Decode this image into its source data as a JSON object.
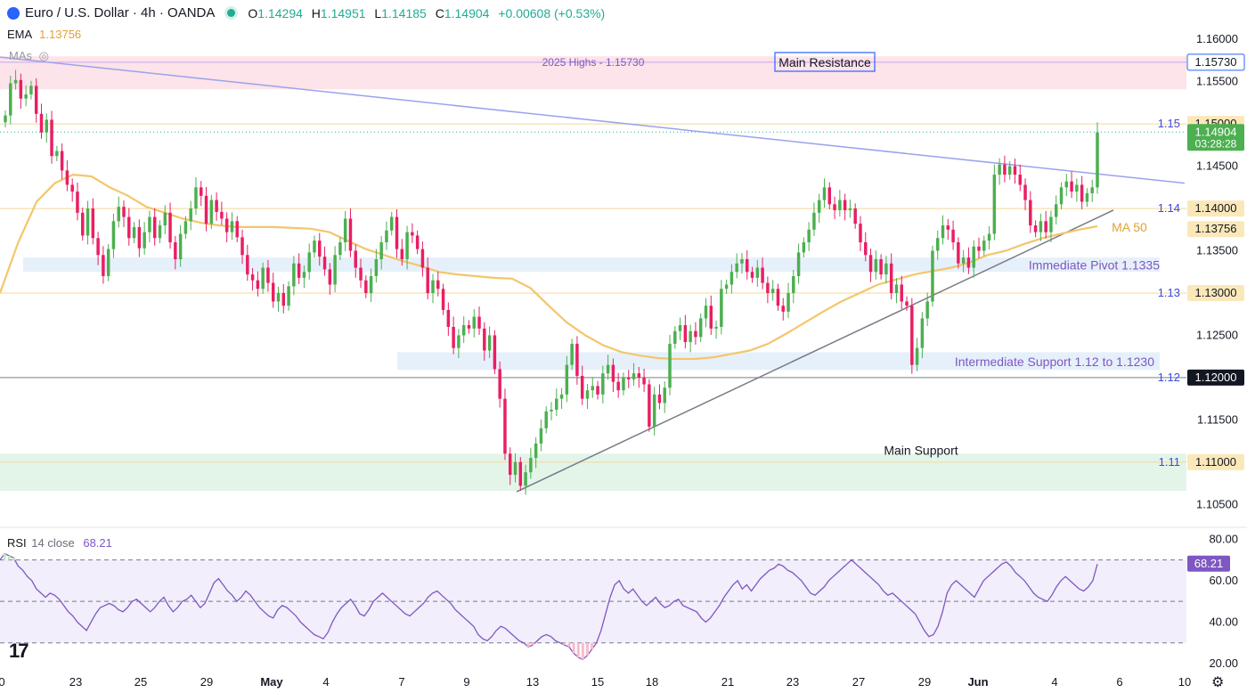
{
  "header": {
    "symbol": "Euro / U.S. Dollar · 4h · OANDA",
    "open_key": "O",
    "open": "1.14294",
    "high_key": "H",
    "high": "1.14951",
    "low_key": "L",
    "low": "1.14185",
    "close_key": "C",
    "close": "1.14904",
    "change": "+0.00608 (+0.53%)"
  },
  "ema_indicator": {
    "label": "EMA",
    "value": "1.13756"
  },
  "mas_label": "MAs",
  "rsi_indicator": {
    "label": "RSI",
    "params": "14 close",
    "value": "68.21"
  },
  "colors": {
    "up": "#4caf50",
    "down": "#e91e63",
    "ema": "#f3c66b",
    "trend_upper": "#9aa3ec",
    "trend_lower": "#787b86",
    "resistance_zone": "#fde3ea",
    "support_zone": "#e3f5e9",
    "pivot_zone": "#e6f0fa",
    "rsi": "#7e57c2",
    "accent": "#4caf50"
  },
  "chart_data": [
    {
      "type": "candlestick",
      "title": "Euro / U.S. Dollar · 4h · OANDA",
      "ylim": [
        1.1025,
        1.1615
      ],
      "y_ticks": [
        "1.16000",
        "1.15500",
        "1.15000",
        "1.14500",
        "1.14000",
        "1.13500",
        "1.13000",
        "1.12500",
        "1.12000",
        "1.11500",
        "1.11000",
        "1.10500"
      ],
      "x_ticks": [
        "0",
        "23",
        "25",
        "29",
        "May",
        "4",
        "7",
        "9",
        "13",
        "15",
        "18",
        "21",
        "23",
        "27",
        "29",
        "Jun",
        "4",
        "6",
        "10"
      ],
      "price_labels": [
        {
          "text": "1.15730",
          "style": "outline"
        },
        {
          "text": "1.15000",
          "style": "yellow"
        },
        {
          "text": "1.14904",
          "sub": "03:28:28",
          "style": "green"
        },
        {
          "text": "1.14000",
          "style": "yellow"
        },
        {
          "text": "1.13756",
          "style": "yellow"
        },
        {
          "text": "1.13000",
          "style": "yellow"
        },
        {
          "text": "1.12000",
          "style": "dark"
        },
        {
          "text": "1.11000",
          "style": "yellow"
        }
      ],
      "level_tags": [
        {
          "text": "1.15",
          "price": 1.15
        },
        {
          "text": "1.14",
          "price": 1.14
        },
        {
          "text": "1.13",
          "price": 1.13
        },
        {
          "text": "1.12",
          "price": 1.12
        },
        {
          "text": "1.11",
          "price": 1.11
        }
      ],
      "annotations": {
        "highs": "2025 Highs - 1.15730",
        "main_resistance": "Main Resistance",
        "ma50": "MA 50",
        "pivot": "Immediate Pivot 1.1335",
        "intermediate_support": "Intermediate Support 1.12 to 1.1230",
        "main_support": "Main Support"
      },
      "zones": [
        {
          "name": "Main Resistance",
          "from": 1.1541,
          "to": 1.158
        },
        {
          "name": "Immediate Pivot",
          "from": 1.1325,
          "to": 1.1342
        },
        {
          "name": "Intermediate Support",
          "from": 1.1209,
          "to": 1.123
        },
        {
          "name": "Main Support",
          "from": 1.1066,
          "to": 1.111
        }
      ],
      "closes": [
        1.151,
        1.1548,
        1.1552,
        1.153,
        1.1535,
        1.1545,
        1.1512,
        1.149,
        1.1505,
        1.1462,
        1.1468,
        1.1445,
        1.1428,
        1.142,
        1.1395,
        1.1368,
        1.14,
        1.1365,
        1.1345,
        1.132,
        1.1352,
        1.1385,
        1.1402,
        1.139,
        1.1365,
        1.1378,
        1.1353,
        1.1372,
        1.139,
        1.1365,
        1.138,
        1.1395,
        1.136,
        1.134,
        1.137,
        1.1385,
        1.14,
        1.1425,
        1.1415,
        1.1382,
        1.141,
        1.1396,
        1.1388,
        1.1372,
        1.1385,
        1.1366,
        1.1345,
        1.1322,
        1.1315,
        1.1305,
        1.133,
        1.1312,
        1.129,
        1.13,
        1.1285,
        1.1308,
        1.1335,
        1.1318,
        1.1325,
        1.1348,
        1.1362,
        1.1343,
        1.1328,
        1.131,
        1.1345,
        1.136,
        1.1388,
        1.135,
        1.133,
        1.1315,
        1.13,
        1.132,
        1.134,
        1.136,
        1.1374,
        1.139,
        1.1352,
        1.134,
        1.1372,
        1.1368,
        1.1352,
        1.133,
        1.13,
        1.1315,
        1.1305,
        1.128,
        1.126,
        1.1235,
        1.125,
        1.1262,
        1.1258,
        1.1272,
        1.1258,
        1.1232,
        1.125,
        1.121,
        1.1175,
        1.111,
        1.1085,
        1.11,
        1.1072,
        1.1088,
        1.1105,
        1.1122,
        1.114,
        1.116,
        1.1162,
        1.1175,
        1.118,
        1.1215,
        1.124,
        1.1202,
        1.1175,
        1.1185,
        1.119,
        1.118,
        1.1205,
        1.1215,
        1.1195,
        1.1185,
        1.12,
        1.1198,
        1.1205,
        1.12,
        1.1192,
        1.1142,
        1.118,
        1.117,
        1.1188,
        1.124,
        1.1255,
        1.1262,
        1.1242,
        1.1255,
        1.1248,
        1.127,
        1.1285,
        1.1258,
        1.126,
        1.1305,
        1.131,
        1.1325,
        1.1335,
        1.134,
        1.1325,
        1.1318,
        1.133,
        1.1312,
        1.13,
        1.1305,
        1.1285,
        1.1278,
        1.13,
        1.132,
        1.1348,
        1.136,
        1.1375,
        1.1395,
        1.141,
        1.1425,
        1.1405,
        1.1398,
        1.141,
        1.1398,
        1.14,
        1.1382,
        1.136,
        1.1345,
        1.1325,
        1.134,
        1.1322,
        1.1335,
        1.13,
        1.131,
        1.129,
        1.1285,
        1.1215,
        1.1235,
        1.127,
        1.129,
        1.135,
        1.1365,
        1.138,
        1.1375,
        1.136,
        1.1335,
        1.1342,
        1.133,
        1.1355,
        1.135,
        1.1362,
        1.137,
        1.144,
        1.1452,
        1.144,
        1.145,
        1.144,
        1.1428,
        1.141,
        1.138,
        1.1372,
        1.1385,
        1.1372,
        1.139,
        1.1405,
        1.1425,
        1.1432,
        1.142,
        1.1428,
        1.1408,
        1.1418,
        1.1425,
        1.149
      ],
      "ema50": [
        1.13,
        1.136,
        1.1408,
        1.143,
        1.144,
        1.1438,
        1.1425,
        1.1415,
        1.1402,
        1.1395,
        1.1388,
        1.1383,
        1.138,
        1.1378,
        1.1378,
        1.1378,
        1.1377,
        1.1376,
        1.1372,
        1.1362,
        1.1352,
        1.1345,
        1.1338,
        1.1332,
        1.1325,
        1.1322,
        1.132,
        1.1318,
        1.1317,
        1.1306,
        1.1285,
        1.1265,
        1.125,
        1.1238,
        1.123,
        1.1226,
        1.1223,
        1.1222,
        1.1222,
        1.1224,
        1.1228,
        1.1232,
        1.124,
        1.1252,
        1.1265,
        1.1278,
        1.129,
        1.13,
        1.131,
        1.1316,
        1.1322,
        1.1326,
        1.133,
        1.1336,
        1.1345,
        1.135,
        1.1358,
        1.1365,
        1.137,
        1.1375,
        1.1379
      ],
      "upper_trendline": [
        [
          1.1579,
          1.1563
        ],
        [
          1.143,
          1.1452
        ]
      ],
      "lower_trendline": [
        [
          1.1065,
          1.1058
        ],
        [
          1.1398,
          1.141
        ]
      ]
    },
    {
      "type": "line",
      "title": "RSI 14 close",
      "ylim": [
        17,
        84
      ],
      "y_ticks": [
        "80.00",
        "60.00",
        "40.00",
        "20.00"
      ],
      "levels": [
        70,
        50,
        30
      ],
      "current": "68.21",
      "values": [
        70,
        73,
        72,
        71,
        67,
        65,
        62,
        60,
        56,
        54,
        52,
        54,
        53,
        51,
        48,
        45,
        43,
        40,
        38,
        36,
        40,
        44,
        47,
        48,
        49,
        48,
        46,
        45,
        47,
        50,
        51,
        49,
        47,
        45,
        47,
        50,
        52,
        48,
        45,
        47,
        50,
        51,
        53,
        50,
        47,
        49,
        54,
        59,
        61,
        58,
        55,
        53,
        50,
        52,
        55,
        53,
        50,
        47,
        45,
        43,
        42,
        46,
        48,
        47,
        45,
        43,
        40,
        38,
        36,
        34,
        33,
        32,
        35,
        40,
        44,
        47,
        49,
        51,
        48,
        44,
        43,
        46,
        50,
        52,
        54,
        52,
        50,
        48,
        46,
        44,
        43,
        45,
        47,
        49,
        52,
        54,
        55,
        53,
        51,
        49,
        46,
        44,
        42,
        40,
        38,
        34,
        32,
        31,
        33,
        36,
        38,
        37,
        35,
        33,
        31,
        30,
        28,
        29,
        31,
        33,
        34,
        33,
        31,
        30,
        29,
        28,
        25,
        23,
        22,
        24,
        27,
        30,
        36,
        44,
        52,
        58,
        60,
        56,
        54,
        56,
        53,
        50,
        48,
        50,
        52,
        49,
        47,
        48,
        50,
        51,
        48,
        47,
        46,
        45,
        42,
        40,
        42,
        45,
        48,
        52,
        55,
        58,
        60,
        56,
        58,
        55,
        58,
        61,
        63,
        65,
        66,
        68,
        67,
        65,
        64,
        62,
        60,
        57,
        54,
        53,
        55,
        57,
        60,
        62,
        64,
        66,
        68,
        70,
        68,
        66,
        64,
        62,
        60,
        58,
        55,
        53,
        54,
        52,
        50,
        48,
        46,
        44,
        40,
        36,
        33,
        34,
        38,
        45,
        54,
        58,
        60,
        58,
        56,
        54,
        52,
        56,
        60,
        62,
        64,
        66,
        68,
        69,
        67,
        64,
        62,
        60,
        57,
        54,
        52,
        51,
        50,
        53,
        57,
        60,
        62,
        60,
        58,
        56,
        55,
        57,
        60,
        68
      ]
    }
  ]
}
